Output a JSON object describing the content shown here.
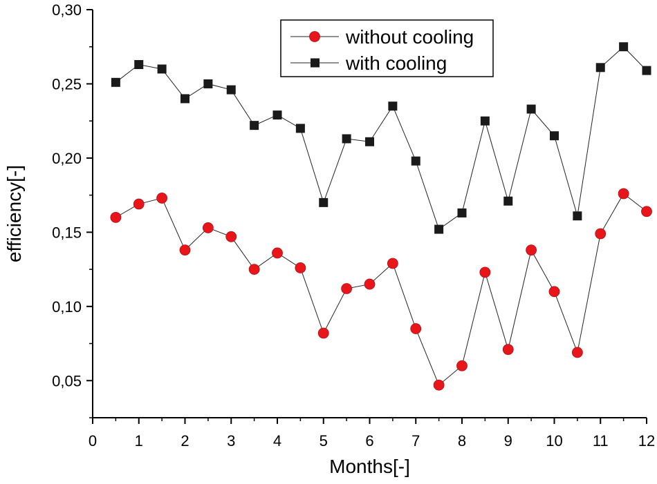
{
  "chart_data": {
    "type": "line",
    "title": "",
    "xlabel": "Months[-]",
    "ylabel": "efficiency[-]",
    "xlim": [
      0,
      12
    ],
    "ylim": [
      0.025,
      0.3
    ],
    "x_ticks": [
      0,
      1,
      2,
      3,
      4,
      5,
      6,
      7,
      8,
      9,
      10,
      11,
      12
    ],
    "x_tick_labels": [
      "0",
      "1",
      "2",
      "3",
      "4",
      "5",
      "6",
      "7",
      "8",
      "9",
      "10",
      "11",
      "12"
    ],
    "y_ticks": [
      0.05,
      0.1,
      0.15,
      0.2,
      0.25,
      0.3
    ],
    "y_tick_labels": [
      "0,05",
      "0,10",
      "0,15",
      "0,20",
      "0,25",
      "0,30"
    ],
    "grid": false,
    "legend_position": "top-center",
    "x": [
      0.5,
      1,
      1.5,
      2,
      2.5,
      3,
      3.5,
      4,
      4.5,
      5,
      5.5,
      6,
      6.5,
      7,
      7.5,
      8,
      8.5,
      9,
      9.5,
      10,
      10.5,
      11,
      11.5,
      12
    ],
    "series": [
      {
        "name": "without cooling",
        "marker": "circle",
        "color": "#e8161b",
        "values": [
          0.16,
          0.169,
          0.173,
          0.138,
          0.153,
          0.147,
          0.125,
          0.136,
          0.126,
          0.082,
          0.112,
          0.115,
          0.129,
          0.085,
          0.047,
          0.06,
          0.123,
          0.071,
          0.138,
          0.11,
          0.069,
          0.149,
          0.176,
          0.164
        ]
      },
      {
        "name": "with cooling",
        "marker": "square",
        "color": "#1a1a1a",
        "values": [
          0.251,
          0.263,
          0.26,
          0.24,
          0.25,
          0.246,
          0.222,
          0.229,
          0.22,
          0.17,
          0.213,
          0.211,
          0.235,
          0.198,
          0.152,
          0.163,
          0.225,
          0.171,
          0.233,
          0.215,
          0.161,
          0.261,
          0.275,
          0.259
        ]
      }
    ]
  }
}
